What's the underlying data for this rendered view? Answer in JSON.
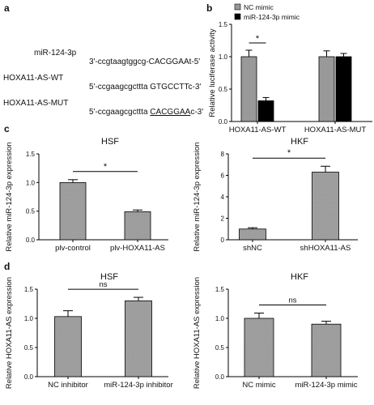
{
  "panel_labels": {
    "a": "a",
    "b": "b",
    "c": "c",
    "d": "d"
  },
  "sequences": [
    {
      "name": "miR-124-3p",
      "seq": "3'-ccgtaagtggcg-CACGGAAt-5'"
    },
    {
      "name": "HOXA11-AS-WT",
      "seq": "5'-ccgaagcgcttta GTGCCTTc-3'"
    },
    {
      "name": "HOXA11-AS-MUT",
      "seq_before": "5'-ccgaagcgcttta ",
      "seq_underlined": "CACGGAA",
      "seq_after": "c-3'"
    }
  ],
  "chart_data": [
    {
      "id": "b",
      "type": "bar",
      "title": "",
      "categories": [
        "HOXA11-AS-WT",
        "HOXA11-AS-MUT"
      ],
      "series": [
        {
          "name": "NC mimic",
          "color": "#999999",
          "values": [
            1.0,
            1.0
          ],
          "errors": [
            0.1,
            0.09
          ]
        },
        {
          "name": "miR-124-3p mimic",
          "color": "#000000",
          "values": [
            0.32,
            1.0
          ],
          "errors": [
            0.05,
            0.05
          ]
        }
      ],
      "ylabel": "Relative luciferase activity",
      "xlabel": "",
      "ylim": [
        0,
        1.5
      ],
      "yticks": [
        0.0,
        0.5,
        1.0,
        1.5
      ],
      "legend": "top",
      "annotations": [
        {
          "text": "*",
          "between": [
            0,
            0,
            0,
            1
          ]
        }
      ]
    },
    {
      "id": "c1",
      "type": "bar",
      "title": "HSF",
      "categories": [
        "plv-control",
        "plv-HOXA11-AS"
      ],
      "values": [
        1.0,
        0.49
      ],
      "errors": [
        0.05,
        0.03
      ],
      "ylabel": "Relative miR-124-3p expression",
      "xlabel": "",
      "ylim": [
        0,
        1.5
      ],
      "yticks": [
        0.0,
        0.5,
        1.0,
        1.5
      ],
      "annotations": [
        {
          "text": "*"
        }
      ]
    },
    {
      "id": "c2",
      "type": "bar",
      "title": "HKF",
      "categories": [
        "shNC",
        "shHOXA11-AS"
      ],
      "values": [
        1.0,
        6.3
      ],
      "errors": [
        0.12,
        0.55
      ],
      "ylabel": "Relative miR-124-3p expression",
      "xlabel": "",
      "ylim": [
        0,
        8
      ],
      "yticks": [
        0,
        2,
        4,
        6,
        8
      ],
      "annotations": [
        {
          "text": "*"
        }
      ]
    },
    {
      "id": "d1",
      "type": "bar",
      "title": "HSF",
      "categories": [
        "NC inhibitor",
        "miR-124-3p inhibitor"
      ],
      "values": [
        1.03,
        1.3
      ],
      "errors": [
        0.1,
        0.06
      ],
      "ylabel": "Relative HOXA11-AS expression",
      "xlabel": "",
      "ylim": [
        0,
        1.5
      ],
      "yticks": [
        0.0,
        0.5,
        1.0,
        1.5
      ],
      "annotations": [
        {
          "text": "ns"
        }
      ]
    },
    {
      "id": "d2",
      "type": "bar",
      "title": "HKF",
      "categories": [
        "NC mimic",
        "miR-124-3p mimic"
      ],
      "values": [
        1.0,
        0.9
      ],
      "errors": [
        0.09,
        0.05
      ],
      "ylabel": "Relative HOXA11-AS expression",
      "xlabel": "",
      "ylim": [
        0,
        1.5
      ],
      "yticks": [
        0.0,
        0.5,
        1.0,
        1.5
      ],
      "annotations": [
        {
          "text": "ns"
        }
      ]
    }
  ]
}
